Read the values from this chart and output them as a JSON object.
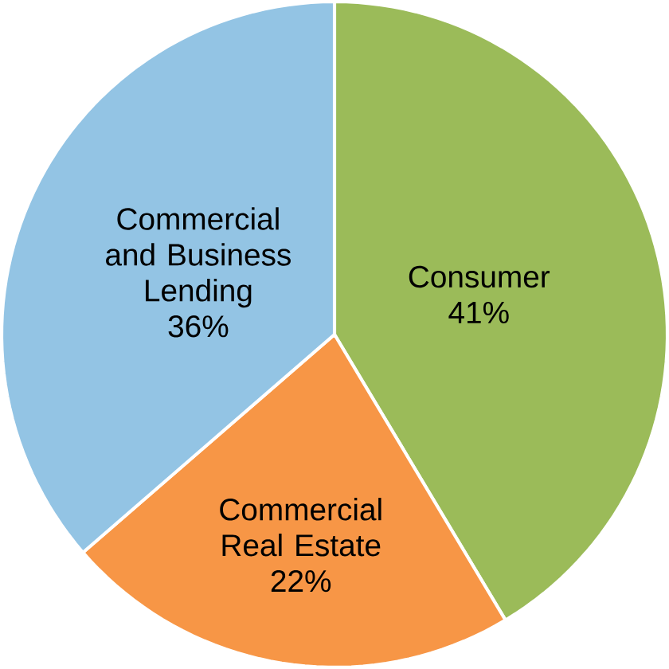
{
  "chart_data": {
    "type": "pie",
    "categories": [
      "Consumer",
      "Commercial Real Estate",
      "Commercial and Business Lending"
    ],
    "values": [
      41,
      22,
      36
    ],
    "value_labels": [
      "41%",
      "22%",
      "36%"
    ],
    "colors": [
      "#9bbb59",
      "#f79646",
      "#93c4e4"
    ]
  }
}
